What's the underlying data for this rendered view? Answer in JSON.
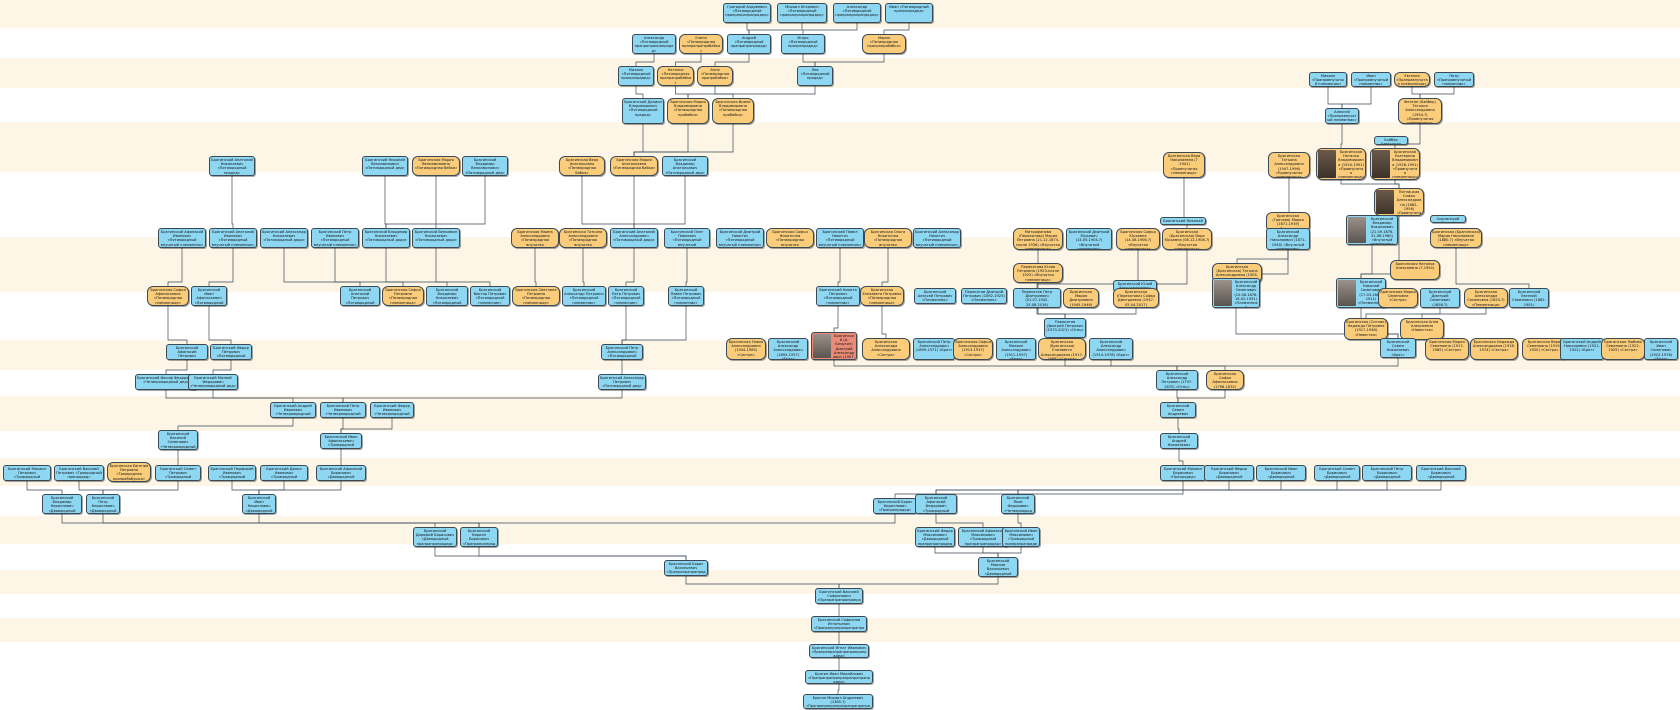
{
  "title": "Генеалогическое древо",
  "colors": {
    "male": "#8dd7f3",
    "female": "#fbcd7b",
    "highlight": "#ea8b78",
    "band": "#fdf6e7",
    "line": "#3c4a55"
  },
  "nodes": [
    {
      "id": "n1",
      "g": "m",
      "text": "Григорий Андреевич «Пятиюродный прапрапрапрапрадед»"
    },
    {
      "id": "n2",
      "g": "m",
      "text": "Михаил Игоревич «Пятиюродный прапрапрапрапрадед»"
    },
    {
      "id": "n3",
      "g": "m",
      "text": "Александр «Пятиюродный прапрапрапрапрадед»"
    },
    {
      "id": "n4",
      "g": "m",
      "text": "Иван «Пятиюродный прапрапрадед»"
    },
    {
      "id": "n5",
      "g": "m",
      "text": "Александр «Пятиюродный прапрапрапрапрадед»"
    },
    {
      "id": "n6",
      "g": "f",
      "text": "Елена «Пятиюродная прапрапрапрабабка»"
    },
    {
      "id": "n7",
      "g": "m",
      "text": "Андрей «Пятиюродный прапрапрапрадед»"
    },
    {
      "id": "n8",
      "g": "m",
      "text": "Игорь «Пятиюродный прапрапрадед»"
    },
    {
      "id": "n9",
      "g": "f",
      "text": "Мария «Пятиюродная прапрапрабабка»"
    },
    {
      "id": "n10",
      "g": "m",
      "text": "Михаил «Пятиюродный прапрапрадед»"
    },
    {
      "id": "n11",
      "g": "f",
      "text": "Наталья «Пятиюродная прапрапрабабка»"
    },
    {
      "id": "n12",
      "g": "f",
      "text": "Анна «Пятиюродная прапрабабка»"
    },
    {
      "id": "n13",
      "g": "m",
      "text": "Лев «Пятиюродный прадед»"
    },
    {
      "id": "n14",
      "g": "m",
      "text": "Михаил «Праправнучатый племянник»"
    },
    {
      "id": "n15",
      "g": "m",
      "text": "Иван «Праправнучатый племянник»"
    },
    {
      "id": "n16",
      "g": "f",
      "text": "Евгения «Праправнучатая племянница»"
    },
    {
      "id": "n17",
      "g": "m",
      "text": "Петр «Праправнучатый племянник»"
    },
    {
      "id": "n18",
      "g": "m",
      "text": "Брагинский Даниил Владимирович «Пятиюродный прадед»"
    },
    {
      "id": "n19",
      "g": "f",
      "text": "Брагинская Мария Владимировна «Пятиюродная прабабка»"
    },
    {
      "id": "n20",
      "g": "f",
      "text": "Брагинская Ирина Владимировна «Пятиюродная прабабка»"
    },
    {
      "id": "n21",
      "g": "m",
      "text": "Алексей «Праправнучатый племянник»"
    },
    {
      "id": "n22",
      "g": "f",
      "text": "Фелтон (Бэйбер) Татьяна Александровна (1954-?) «Правнучатая племянница»"
    },
    {
      "id": "n23",
      "g": "m",
      "text": "Брагинский Анатолий Николаевич «Пятиюродный прадед»"
    },
    {
      "id": "n24",
      "g": "m",
      "text": "Брагинский Николай Вениаминович «Пятиюродный дед»"
    },
    {
      "id": "n25",
      "g": "f",
      "text": "Брагинская Мария Вениаминовна «Пятиюродная бабка»"
    },
    {
      "id": "n26",
      "g": "m",
      "text": "Брагинский Владимир Вениаминович «Пятиюродный дед»"
    },
    {
      "id": "n27",
      "g": "f",
      "text": "Брагинская Вера Анатольевна «Пятиюродная бабка»"
    },
    {
      "id": "n28",
      "g": "f",
      "text": "Брагинская Мария Анатольевна «Пятиюродная бабка»"
    },
    {
      "id": "n29",
      "g": "m",
      "text": "Брагинский Владимир Анатольевич «Пятиюродный дед»"
    },
    {
      "id": "n30",
      "g": "f",
      "text": "Брагинская Вера Николаевна (?-1941) «Правнучатая племянница»"
    },
    {
      "id": "n31",
      "g": "f",
      "text": "Брагинская Татьяна Александровна (1947-1996) «Правнучатая племянница»"
    },
    {
      "id": "n32",
      "g": "f",
      "text": "Брагинская Наталья Владимировна (1920-1991) «Правнучатая племянница»"
    },
    {
      "id": "n33",
      "g": "f",
      "text": "Брагинская Екатерина Владимировна (1926-1991) «Правнучатая племянница»"
    },
    {
      "id": "n34",
      "g": "m",
      "text": "Бэйбер Александр"
    },
    {
      "id": "n35",
      "g": "m",
      "text": "Брагинский Афанасий Иванович «Пятиюродный внучатый племянник»"
    },
    {
      "id": "n36",
      "g": "m",
      "text": "Брагинский Анатолий Иванович «Пятиюродный внучатый племянник»"
    },
    {
      "id": "n37",
      "g": "m",
      "text": "Брагинский Александр Николаевич «Пятиюродный дядя»"
    },
    {
      "id": "n38",
      "g": "m",
      "text": "Брагинский Петр Иванович «Пятиюродный внучатый племянник»"
    },
    {
      "id": "n39",
      "g": "m",
      "text": "Брагинский Владимир Николаевич «Пятиюродный дядя»"
    },
    {
      "id": "n40",
      "g": "m",
      "text": "Брагинский Вениамин Николаевич «Пятиюродный дядя»"
    },
    {
      "id": "n41",
      "g": "f",
      "text": "Брагинская Маина Александровна «Пятиюродная внучатая племянница»"
    },
    {
      "id": "n42",
      "g": "f",
      "text": "Брагинская Татьяна Александровна «Пятиюродная внучатая племянница»"
    },
    {
      "id": "n43",
      "g": "m",
      "text": "Брагинский Анатолий Александрович «Пятиюродный дядя»"
    },
    {
      "id": "n44",
      "g": "m",
      "text": "Брагинский Олег Павлович «Пятиюродный внучатый племянник»"
    },
    {
      "id": "n45",
      "g": "m",
      "text": "Брагинский Дмитрий Никитич «Пятиюродный внучатый племянник»"
    },
    {
      "id": "n46",
      "g": "f",
      "text": "Брагинская Софья Никитична «Пятиюродная внучатая племянница»"
    },
    {
      "id": "n47",
      "g": "m",
      "text": "Брагинский Павел Никитич «Пятиюродный внучатый племянник»"
    },
    {
      "id": "n48",
      "g": "f",
      "text": "Брагинская Ольга Никитична «Пятиюродная внучатая племянница»"
    },
    {
      "id": "n49",
      "g": "m",
      "text": "Брагинский Александр Никитич «Пятиюродный внучатый племянник»"
    },
    {
      "id": "n50",
      "g": "f",
      "text": "Митрофанова (Перекатова) Мария Петровна (21.12.1874-после 1936) «Внучатая племянница»"
    },
    {
      "id": "n51",
      "g": "m",
      "text": "Брагинский Дмитрий Юрьевич (14.05.1904-?) «Внучатый племянник»"
    },
    {
      "id": "n52",
      "g": "f",
      "text": "Брагинская Софья Юрьевна (14.08.1906-?) «Внучатая племянница»"
    },
    {
      "id": "n53",
      "g": "f",
      "text": "Брагинская (Брагинская) Вера Юрьевна (08.12.1908-?) «Внучатая племянница»"
    },
    {
      "id": "n54",
      "g": "m",
      "text": "Брагинский Николай"
    },
    {
      "id": "n55",
      "g": "f",
      "text": "Брагинская (Грачева) Мария (1871-1939) «Внучатая племянница»"
    },
    {
      "id": "n56",
      "g": "m",
      "text": "Брагинский Александр Николаевич (1871-1940) «Внучатый племянник»"
    },
    {
      "id": "n57",
      "g": "f",
      "text": "Пятницкая Софья Александровна (1882-1956) «Правнучатая племянница»"
    },
    {
      "id": "n58",
      "g": "m",
      "text": "Брагинский Владимир Николаевич (21.09.1876-31.08.1960) «Внучатый племянник»"
    },
    {
      "id": "n59",
      "g": "m",
      "text": "Скопинский Сергей"
    },
    {
      "id": "n60",
      "g": "f",
      "text": "Брагинская (Брагинская) Мария Николаевна (1880-?) «Внучатая племянница»"
    },
    {
      "id": "n61",
      "g": "f",
      "text": "Брагинская Софья Афанасьевна «Пятиюродная племянница»"
    },
    {
      "id": "n62",
      "g": "m",
      "text": "Брагинский Иван Афанасьевич «Пятиюродный племянник»"
    },
    {
      "id": "n63",
      "g": "m",
      "text": "Брагинский Анатолий Петрович «Пятиюродный племянник»"
    },
    {
      "id": "n64",
      "g": "f",
      "text": "Брагинская Софья Петровна «Пятиюродная племянница»"
    },
    {
      "id": "n65",
      "g": "m",
      "text": "Брагинский Владимир Николаевич «Пятиюродный племянник»"
    },
    {
      "id": "n66",
      "g": "m",
      "text": "Брагинский Виктор Петрович «Пятиюродный племянник»"
    },
    {
      "id": "n67",
      "g": "f",
      "text": "Брагинская Светлана Петровна «Пятиюродная племянница»"
    },
    {
      "id": "n68",
      "g": "m",
      "text": "Брагинский Александр Петрович «Пятиюродный племянник»"
    },
    {
      "id": "n69",
      "g": "m",
      "text": "Брагинский Петр Петрович «Пятиюродный племянник»"
    },
    {
      "id": "n70",
      "g": "m",
      "text": "Брагинский Павел Петрович «Пятиюродный племянник»"
    },
    {
      "id": "n71",
      "g": "m",
      "text": "Брагинский Никита Петрович «Пятиюродный племянник»"
    },
    {
      "id": "n72",
      "g": "f",
      "text": "Брагинская Елизавета Петровна «Пятиюродная племянница»"
    },
    {
      "id": "n73",
      "g": "f",
      "text": "Перекатова Юлия Петровна (1903-после 1925) «Внучатая племянница»"
    },
    {
      "id": "n74",
      "g": "f",
      "text": "Брагинская (Брагинская) Татьяна Александровна (1905-1922) «Правнучатая племянница»"
    },
    {
      "id": "n75",
      "g": "f",
      "text": "Брагинская (Михайлова) Софья Васильевна (1909-?) «Правнучатая племянница»"
    },
    {
      "id": "n76",
      "g": "m",
      "text": "Брагинский Александр Семенович (10.08.1876-18.02.1931) «Племянник»"
    },
    {
      "id": "n77",
      "g": "f",
      "text": "Брагинская Наталья Алексеевна (?-1954)"
    },
    {
      "id": "n78",
      "g": "m",
      "text": "Брагинский Николай Семенович (17.03.1864-1911) «Племянник»"
    },
    {
      "id": "n79",
      "g": "m",
      "text": "Брагинский Алексей Петрович «Племянник»"
    },
    {
      "id": "n80",
      "g": "m",
      "text": "Перекатов Дмитрий Петрович (1892-1925) «Племянник»"
    },
    {
      "id": "n81",
      "g": "m",
      "text": "Перекатов Петр Дмитриевич (01.07.1942-25.08.2016) «Племянник»"
    },
    {
      "id": "n82",
      "g": "f",
      "text": "Брагинская Мария Дмитриевна (1945-1946) «Племянница»"
    },
    {
      "id": "n83",
      "g": "m",
      "text": "Брагинский Юлий Константинович (16.04.1943-04.04.1977) «Племянник»"
    },
    {
      "id": "n84",
      "g": "f",
      "text": "Брагинская (Перекатова) Софья Дмитриевна (1947-05.04.2017) «Племянница»"
    },
    {
      "id": "n85",
      "g": "f",
      "text": "Брагинская Мария Семеновна «Сестра»"
    },
    {
      "id": "n86",
      "g": "m",
      "text": "Брагинский Дмитрий Семенович (1856-?) «Племянник»"
    },
    {
      "id": "n87",
      "g": "f",
      "text": "Брагинская Александра Семеновна (1853-?) «Племянница»"
    },
    {
      "id": "n88",
      "g": "m",
      "text": "Брагинский Евгений Семенович (1862-1901) «Племянник»"
    },
    {
      "id": "n89",
      "g": "m",
      "text": "Брагинский Афанасий Петрович «Пятиюродный брат»"
    },
    {
      "id": "n90",
      "g": "m",
      "text": "Брагинский Федор Петрович «Пятиюродный брат»"
    },
    {
      "id": "n91",
      "g": "m",
      "text": "Брагинский Петр Александрович «Пятиюродный брат»"
    },
    {
      "id": "n92",
      "g": "f",
      "text": "Брагинская Павла Александровна (1904-1985) «Сестра»"
    },
    {
      "id": "n93",
      "g": "m",
      "text": "Брагинский Александр Александрович (1893-1957) «Брат»"
    },
    {
      "id": "n94",
      "g": "r",
      "text": "Брагинский (А. Безыгин) Дмитрий Александрович (1907-1987)"
    },
    {
      "id": "n95",
      "g": "f",
      "text": "Брагинская Александра Александровна «Сестра»"
    },
    {
      "id": "n96",
      "g": "m",
      "text": "Брагинский Петр Александрович (1899-1971) «Брат»"
    },
    {
      "id": "n97",
      "g": "f",
      "text": "Брагинская Софья Александровна (1913-1937) «Сестра»"
    },
    {
      "id": "n98",
      "g": "m",
      "text": "Брагинский Михаил Александрович (1911-1997) «Брат»"
    },
    {
      "id": "n99",
      "g": "m",
      "text": "Перекатов Дмитрий Петрович (1970-2021) «Отец»"
    },
    {
      "id": "n100",
      "g": "f",
      "text": "Брагинская (Брагинская) Елизавета Александровна (1917-1986) «Сестра»"
    },
    {
      "id": "n101",
      "g": "m",
      "text": "Брагинский Александр Александрович (1914-1976) «Брат»"
    },
    {
      "id": "n102",
      "g": "f",
      "text": "Брагинская (Ситник) Надежда Петровна (1917-1946) «Невестка»"
    },
    {
      "id": "n103",
      "g": "f",
      "text": "Брагинская Анна Алексеевна «Невестка»"
    },
    {
      "id": "n104",
      "g": "m",
      "text": "Брагинский Семен Николаевич «Брат»"
    },
    {
      "id": "n105",
      "g": "f",
      "text": "Брагинская Мария Семеновна (1917-1989) «Сестра»"
    },
    {
      "id": "n106",
      "g": "f",
      "text": "Брагинская Надежда Александровна (1918-1974) «Сестра»"
    },
    {
      "id": "n107",
      "g": "f",
      "text": "Брагинская Вера Семеновна (1919-1920) «Сестра»"
    },
    {
      "id": "n108",
      "g": "m",
      "text": "Брагинский Андрей Николаевич (1921-1922) «Брат»"
    },
    {
      "id": "n109",
      "g": "f",
      "text": "Брагинская Любовь Семеновна (1922-1925) «Сестра»"
    },
    {
      "id": "n110",
      "g": "m",
      "text": "Брагинский Иван Семенович (1923-1976) «Брат»"
    },
    {
      "id": "n111",
      "g": "m",
      "text": "Брагинский Иосиф Федорович «Четвероюродный дед»"
    },
    {
      "id": "n112",
      "g": "m",
      "text": "Брагинский Матвей Федорович «Четвероюродный дед»"
    },
    {
      "id": "n113",
      "g": "m",
      "text": "Брагинский Александр Петрович «Пятиюродный дед»"
    },
    {
      "id": "n114",
      "g": "m",
      "text": "Брагинский Александр Петрович (1797-1870) «Отец»"
    },
    {
      "id": "n115",
      "g": "f",
      "text": "Брагинская Софья Афанасьевна (1796-1832) «Мать»"
    },
    {
      "id": "n116",
      "g": "m",
      "text": "Брагинский Андрей Иванович «Четвероюродный дед»"
    },
    {
      "id": "n117",
      "g": "m",
      "text": "Брагинский Петр Иванович «Четвероюродный дед»"
    },
    {
      "id": "n118",
      "g": "m",
      "text": "Брагинский Федор Иванович «Четвероюродный дед»"
    },
    {
      "id": "n119",
      "g": "m",
      "text": "Брагинский Семен Андреевич «Дед»"
    },
    {
      "id": "n120",
      "g": "m",
      "text": "Брагинский Василий Семенович «Четвероюродный прадед»"
    },
    {
      "id": "n121",
      "g": "m",
      "text": "Брагинский Иван Афанасьевич «Троюродный прадед»"
    },
    {
      "id": "n122",
      "g": "m",
      "text": "Брагинский Андрей Николаевич «Прадед»"
    },
    {
      "id": "n123",
      "g": "m",
      "text": "Брагинский Михаил Петрович «Троюродный прапрадед»"
    },
    {
      "id": "n124",
      "g": "m",
      "text": "Брагинский Василий Петрович «Троюродный прапрадед»"
    },
    {
      "id": "n125",
      "g": "f",
      "text": "Брагинская Евгения Петровна «Троюродная прапрабабушка»"
    },
    {
      "id": "n126",
      "g": "m",
      "text": "Брагинский Семен Петрович «Троюродный прапрадед»"
    },
    {
      "id": "n127",
      "g": "m",
      "text": "Брагинский Порфирий Иванович «Троюродный прапрадед»"
    },
    {
      "id": "n128",
      "g": "m",
      "text": "Брагинский Данил Иванович «Троюродный прапрадед»"
    },
    {
      "id": "n129",
      "g": "m",
      "text": "Брагинский Афанасий Борисович «Двоюродный прапрадед»"
    },
    {
      "id": "n130",
      "g": "m",
      "text": "Брагинский Михаил Борисович «Прапрадед»"
    },
    {
      "id": "n131",
      "g": "m",
      "text": "Брагинский Федор Борисович «Двоюродный прапрадед»"
    },
    {
      "id": "n132",
      "g": "m",
      "text": "Брагинский Иван Борисович «Двоюродный прапрадед»"
    },
    {
      "id": "n133",
      "g": "m",
      "text": "Брагинский Семен Борисович «Двоюродный прапрадед»"
    },
    {
      "id": "n134",
      "g": "m",
      "text": "Брагинский Петр Борисович «Двоюродный прапрадед»"
    },
    {
      "id": "n135",
      "g": "m",
      "text": "Брагинский Василий Борисович «Двоюродный прапрадед»"
    },
    {
      "id": "n136",
      "g": "m",
      "text": "Брагинский Владимир Кириллович «Двоюродный прапрапрадед»"
    },
    {
      "id": "n137",
      "g": "m",
      "text": "Брагинский Петр Кириллович «Двоюродный прапрапрадед»"
    },
    {
      "id": "n138",
      "g": "m",
      "text": "Брагинский Иван Кириллович «Двоюродный прапрапрадед»"
    },
    {
      "id": "n139",
      "g": "m",
      "text": "Брагинский Борис Кириллович «Прапрапрадед»"
    },
    {
      "id": "n140",
      "g": "m",
      "text": "Брагинский Афанасий Федорович «Троюродный прапрапрадед»"
    },
    {
      "id": "n141",
      "g": "m",
      "text": "Брагинский Яков Федорович «Четвероюродный прапрапрадед»"
    },
    {
      "id": "n142",
      "g": "m",
      "text": "Брагинский Дорофей Борисович «Двоюродный прапрапрапрадед»"
    },
    {
      "id": "n143",
      "g": "m",
      "text": "Брагинский Кирилл Борисович «Прапрапрапрадед»"
    },
    {
      "id": "n144",
      "g": "m",
      "text": "Брагинский Федор Максимович «Двоюродный прапрапрапрадед»"
    },
    {
      "id": "n145",
      "g": "m",
      "text": "Брагинский Афанасий Максимович «Троюродный прапрапрапрадед»"
    },
    {
      "id": "n146",
      "g": "m",
      "text": "Брагинский Иван Максимович «Троюродный прапрапрапрадед»"
    },
    {
      "id": "n147",
      "g": "m",
      "text": "Брагинский Борис Васильевич «Прапрапрапрапрадед»"
    },
    {
      "id": "n148",
      "g": "m",
      "text": "Брагинский Максим Васильевич «Двоюродный прапрапрапрапрадед»"
    },
    {
      "id": "n149",
      "g": "m",
      "text": "Брагинский Василий Сафронович «Прапрапрапрапрапрадед»"
    },
    {
      "id": "n150",
      "g": "m",
      "text": "Брагинский Сафронов Игнатьевич «Прапрапрапрапрапрапрадед»"
    },
    {
      "id": "n151",
      "g": "m",
      "text": "Брагинский Игнат Иванович «Прапрапрапрапрапрапрапрадед»"
    },
    {
      "id": "n152",
      "g": "m",
      "text": "Брагин Иван Михайлович «Прапрапрапрапрапрапрапрапрадед»"
    },
    {
      "id": "n153",
      "g": "m",
      "text": "Брагин Михаил Андреевич (1385-?) «Прапрапрапрапрапрапрапрапрапрадед»"
    }
  ]
}
